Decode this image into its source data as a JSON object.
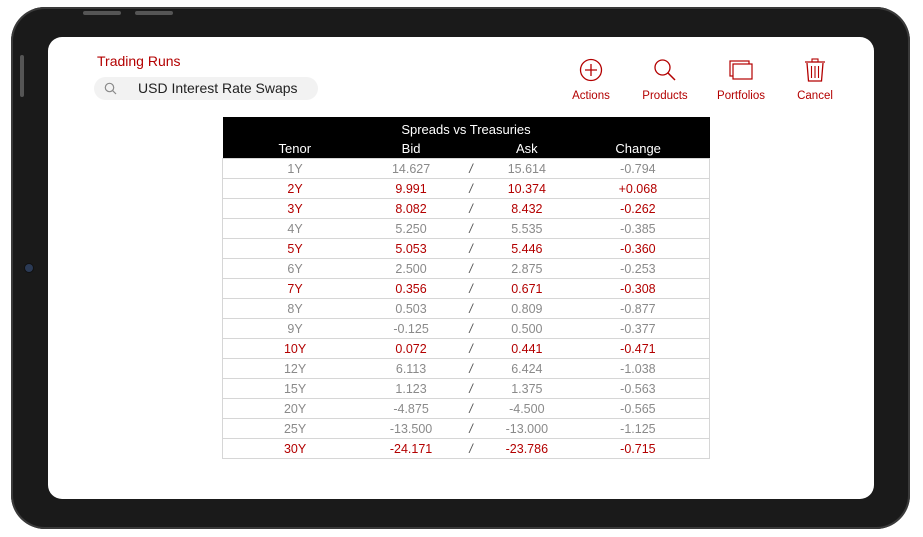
{
  "app": {
    "title": "Trading Runs"
  },
  "search": {
    "value": "USD Interest Rate Swaps"
  },
  "toolbar": [
    {
      "label": "Actions",
      "icon": "plus-circle-icon"
    },
    {
      "label": "Products",
      "icon": "search-icon"
    },
    {
      "label": "Portfolios",
      "icon": "windows-icon"
    },
    {
      "label": "Cancel",
      "icon": "trash-icon"
    }
  ],
  "colors": {
    "accent": "#b30000",
    "muted": "#8a8a8a",
    "header_bg": "#000000"
  },
  "table": {
    "caption": "Spreads vs Treasuries",
    "headers": [
      "Tenor",
      "Bid",
      "Ask",
      "Change"
    ],
    "separator": "/",
    "rows": [
      {
        "tenor": "1Y",
        "bid": "14.627",
        "ask": "15.614",
        "change": "-0.794",
        "highlight": false
      },
      {
        "tenor": "2Y",
        "bid": "9.991",
        "ask": "10.374",
        "change": "+0.068",
        "highlight": true
      },
      {
        "tenor": "3Y",
        "bid": "8.082",
        "ask": "8.432",
        "change": "-0.262",
        "highlight": true
      },
      {
        "tenor": "4Y",
        "bid": "5.250",
        "ask": "5.535",
        "change": "-0.385",
        "highlight": false
      },
      {
        "tenor": "5Y",
        "bid": "5.053",
        "ask": "5.446",
        "change": "-0.360",
        "highlight": true
      },
      {
        "tenor": "6Y",
        "bid": "2.500",
        "ask": "2.875",
        "change": "-0.253",
        "highlight": false
      },
      {
        "tenor": "7Y",
        "bid": "0.356",
        "ask": "0.671",
        "change": "-0.308",
        "highlight": true
      },
      {
        "tenor": "8Y",
        "bid": "0.503",
        "ask": "0.809",
        "change": "-0.877",
        "highlight": false
      },
      {
        "tenor": "9Y",
        "bid": "-0.125",
        "ask": "0.500",
        "change": "-0.377",
        "highlight": false
      },
      {
        "tenor": "10Y",
        "bid": "0.072",
        "ask": "0.441",
        "change": "-0.471",
        "highlight": true
      },
      {
        "tenor": "12Y",
        "bid": "6.113",
        "ask": "6.424",
        "change": "-1.038",
        "highlight": false
      },
      {
        "tenor": "15Y",
        "bid": "1.123",
        "ask": "1.375",
        "change": "-0.563",
        "highlight": false
      },
      {
        "tenor": "20Y",
        "bid": "-4.875",
        "ask": "-4.500",
        "change": "-0.565",
        "highlight": false
      },
      {
        "tenor": "25Y",
        "bid": "-13.500",
        "ask": "-13.000",
        "change": "-1.125",
        "highlight": false
      },
      {
        "tenor": "30Y",
        "bid": "-24.171",
        "ask": "-23.786",
        "change": "-0.715",
        "highlight": true
      }
    ]
  }
}
